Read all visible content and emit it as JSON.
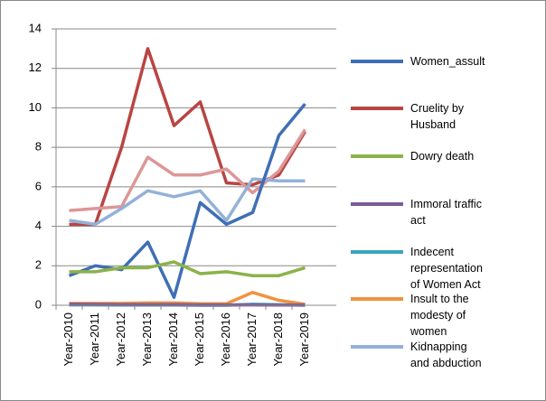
{
  "chart_data": {
    "type": "line",
    "categories": [
      "Year-2010",
      "Year-2011",
      "Year-2012",
      "Year-2013",
      "Year-2014",
      "Year-2015",
      "Year-2016",
      "Year-2017",
      "Year-2018",
      "Year-2019"
    ],
    "series": [
      {
        "name": "Women_assult",
        "color": "#3f6fb5",
        "values": [
          1.5,
          2.0,
          1.8,
          3.2,
          0.4,
          5.2,
          4.1,
          4.7,
          8.6,
          10.2
        ]
      },
      {
        "name": "Cruelity by Husband",
        "color": "#b84542",
        "values": [
          4.1,
          4.1,
          8.0,
          13.0,
          9.1,
          10.3,
          6.2,
          6.1,
          6.6,
          8.8
        ]
      },
      {
        "name": "Dowry death",
        "color": "#8cb24a",
        "values": [
          1.7,
          1.7,
          1.9,
          1.9,
          2.2,
          1.6,
          1.7,
          1.5,
          1.5,
          1.9
        ]
      },
      {
        "name": "Immoral traffic act",
        "color": "#7a5a9e",
        "values": [
          0.05,
          0.04,
          0.03,
          0.03,
          0.03,
          0.02,
          0.02,
          0.02,
          0.01,
          0.01
        ]
      },
      {
        "name": "Indecent representation of Women Act",
        "color": "#3aa3bd",
        "values": [
          0.02,
          0.02,
          0.01,
          0.01,
          0.01,
          0,
          0,
          0.05,
          0.03,
          0
        ]
      },
      {
        "name": "Insult to the modesty of women",
        "color": "#f0923f",
        "values": [
          0.1,
          0.1,
          0.1,
          0.12,
          0.12,
          0.08,
          0.08,
          0.65,
          0.25,
          0.05
        ]
      },
      {
        "name": "Kidnapping and abduction",
        "color": "#93b1d8",
        "values": [
          4.3,
          4.1,
          4.9,
          5.8,
          5.5,
          5.8,
          4.3,
          6.4,
          6.3,
          6.3
        ]
      },
      {
        "color": "#dc9796",
        "values": [
          4.8,
          4.9,
          5.0,
          7.5,
          6.6,
          6.6,
          6.9,
          5.7,
          6.8,
          8.9
        ]
      }
    ],
    "ylim": [
      0,
      14
    ],
    "yticks": [
      0,
      2,
      4,
      6,
      8,
      10,
      12,
      14
    ],
    "grid": true,
    "legend": "right"
  }
}
